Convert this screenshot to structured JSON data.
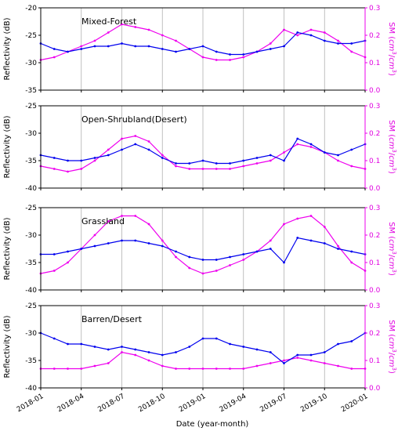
{
  "chart_data": {
    "type": "line",
    "xlabel": "Date (year-month)",
    "x_ticks": [
      "2018-01",
      "2018-04",
      "2018-07",
      "2018-10",
      "2019-01",
      "2019-04",
      "2019-07",
      "2019-10",
      "2020-01"
    ],
    "xlim": [
      "2018-01",
      "2020-01"
    ],
    "colors": {
      "reflectivity": "#0000ee",
      "sm": "#ee00ee"
    },
    "panels": [
      {
        "title": "Mixed-Forest",
        "ylabel": "Reflectivity (dB)",
        "ylim": [
          -35,
          -20
        ],
        "yticks": [
          "-35",
          "-30",
          "-25",
          "-20"
        ],
        "y2label": "SM (cm3/cm3)",
        "y2lim": [
          0,
          0.3
        ],
        "y2ticks": [
          "0.0",
          "0.1",
          "0.2",
          "0.3"
        ],
        "reflectivity": {
          "x": [
            "2018-01",
            "2018-02",
            "2018-03",
            "2018-04",
            "2018-05",
            "2018-06",
            "2018-07",
            "2018-08",
            "2018-09",
            "2018-10",
            "2018-11",
            "2018-12",
            "2019-01",
            "2019-02",
            "2019-03",
            "2019-04",
            "2019-05",
            "2019-06",
            "2019-07",
            "2019-08",
            "2019-09",
            "2019-10",
            "2019-11",
            "2019-12",
            "2020-01"
          ],
          "y": [
            -26.5,
            -27.5,
            -28,
            -27.5,
            -27,
            -27,
            -26.5,
            -27,
            -27,
            -27.5,
            -28,
            -27.5,
            -27,
            -28,
            -28.5,
            -28.5,
            -28,
            -27.5,
            -27,
            -24.5,
            -25,
            -26,
            -26.5,
            -26.5,
            -26
          ]
        },
        "sm": {
          "x": [
            "2018-01",
            "2018-02",
            "2018-03",
            "2018-04",
            "2018-05",
            "2018-06",
            "2018-07",
            "2018-08",
            "2018-09",
            "2018-10",
            "2018-11",
            "2018-12",
            "2019-01",
            "2019-02",
            "2019-03",
            "2019-04",
            "2019-05",
            "2019-06",
            "2019-07",
            "2019-08",
            "2019-09",
            "2019-10",
            "2019-11",
            "2019-12",
            "2020-01"
          ],
          "y": [
            0.11,
            0.12,
            0.14,
            0.16,
            0.18,
            0.21,
            0.24,
            0.23,
            0.22,
            0.2,
            0.18,
            0.15,
            0.12,
            0.11,
            0.11,
            0.12,
            0.14,
            0.17,
            0.22,
            0.2,
            0.22,
            0.21,
            0.18,
            0.14,
            0.12
          ]
        }
      },
      {
        "title": "Open-Shrubland(Desert)",
        "ylabel": "Reflectivity (dB)",
        "ylim": [
          -40,
          -25
        ],
        "yticks": [
          "-40",
          "-35",
          "-30",
          "-25"
        ],
        "y2label": "SM (cm3/cm3)",
        "y2lim": [
          0,
          0.3
        ],
        "y2ticks": [
          "0.0",
          "0.1",
          "0.2",
          "0.3"
        ],
        "reflectivity": {
          "x": [
            "2018-01",
            "2018-02",
            "2018-03",
            "2018-04",
            "2018-05",
            "2018-06",
            "2018-07",
            "2018-08",
            "2018-09",
            "2018-10",
            "2018-11",
            "2018-12",
            "2019-01",
            "2019-02",
            "2019-03",
            "2019-04",
            "2019-05",
            "2019-06",
            "2019-07",
            "2019-08",
            "2019-09",
            "2019-10",
            "2019-11",
            "2019-12",
            "2020-01"
          ],
          "y": [
            -34,
            -34.5,
            -35,
            -35,
            -34.5,
            -34,
            -33,
            -32,
            -33,
            -34.5,
            -35.5,
            -35.5,
            -35,
            -35.5,
            -35.5,
            -35,
            -34.5,
            -34,
            -35,
            -31,
            -32,
            -33.5,
            -34,
            -33,
            -32
          ]
        },
        "sm": {
          "x": [
            "2018-01",
            "2018-02",
            "2018-03",
            "2018-04",
            "2018-05",
            "2018-06",
            "2018-07",
            "2018-08",
            "2018-09",
            "2018-10",
            "2018-11",
            "2018-12",
            "2019-01",
            "2019-02",
            "2019-03",
            "2019-04",
            "2019-05",
            "2019-06",
            "2019-07",
            "2019-08",
            "2019-09",
            "2019-10",
            "2019-11",
            "2019-12",
            "2020-01"
          ],
          "y": [
            0.08,
            0.07,
            0.06,
            0.07,
            0.1,
            0.14,
            0.18,
            0.19,
            0.17,
            0.12,
            0.08,
            0.07,
            0.07,
            0.07,
            0.07,
            0.08,
            0.09,
            0.1,
            0.13,
            0.16,
            0.15,
            0.13,
            0.1,
            0.08,
            0.07
          ]
        }
      },
      {
        "title": "Grassland",
        "ylabel": "Reflectivity (dB)",
        "ylim": [
          -40,
          -25
        ],
        "yticks": [
          "-40",
          "-35",
          "-30",
          "-25"
        ],
        "y2label": "SM (cm3/cm3)",
        "y2lim": [
          0,
          0.3
        ],
        "y2ticks": [
          "0.0",
          "0.1",
          "0.2",
          "0.3"
        ],
        "reflectivity": {
          "x": [
            "2018-01",
            "2018-02",
            "2018-03",
            "2018-04",
            "2018-05",
            "2018-06",
            "2018-07",
            "2018-08",
            "2018-09",
            "2018-10",
            "2018-11",
            "2018-12",
            "2019-01",
            "2019-02",
            "2019-03",
            "2019-04",
            "2019-05",
            "2019-06",
            "2019-07",
            "2019-08",
            "2019-09",
            "2019-10",
            "2019-11",
            "2019-12",
            "2020-01"
          ],
          "y": [
            -33.5,
            -33.5,
            -33,
            -32.5,
            -32,
            -31.5,
            -31,
            -31,
            -31.5,
            -32,
            -33,
            -34,
            -34.5,
            -34.5,
            -34,
            -33.5,
            -33,
            -32.5,
            -35,
            -30.5,
            -31,
            -31.5,
            -32.5,
            -33,
            -33.5
          ]
        },
        "sm": {
          "x": [
            "2018-01",
            "2018-02",
            "2018-03",
            "2018-04",
            "2018-05",
            "2018-06",
            "2018-07",
            "2018-08",
            "2018-09",
            "2018-10",
            "2018-11",
            "2018-12",
            "2019-01",
            "2019-02",
            "2019-03",
            "2019-04",
            "2019-05",
            "2019-06",
            "2019-07",
            "2019-08",
            "2019-09",
            "2019-10",
            "2019-11",
            "2019-12",
            "2020-01"
          ],
          "y": [
            0.06,
            0.07,
            0.1,
            0.15,
            0.2,
            0.25,
            0.27,
            0.27,
            0.24,
            0.18,
            0.12,
            0.08,
            0.06,
            0.07,
            0.09,
            0.11,
            0.14,
            0.18,
            0.24,
            0.26,
            0.27,
            0.23,
            0.16,
            0.1,
            0.07
          ]
        }
      },
      {
        "title": "Barren/Desert",
        "ylabel": "Reflectivity (dB)",
        "ylim": [
          -40,
          -25
        ],
        "yticks": [
          "-40",
          "-35",
          "-30",
          "-25"
        ],
        "y2label": "SM (cm3/cm3)",
        "y2lim": [
          0,
          0.3
        ],
        "y2ticks": [
          "0.0",
          "0.1",
          "0.2",
          "0.3"
        ],
        "reflectivity": {
          "x": [
            "2018-01",
            "2018-02",
            "2018-03",
            "2018-04",
            "2018-05",
            "2018-06",
            "2018-07",
            "2018-08",
            "2018-09",
            "2018-10",
            "2018-11",
            "2018-12",
            "2019-01",
            "2019-02",
            "2019-03",
            "2019-04",
            "2019-05",
            "2019-06",
            "2019-07",
            "2019-08",
            "2019-09",
            "2019-10",
            "2019-11",
            "2019-12",
            "2020-01"
          ],
          "y": [
            -30,
            -31,
            -32,
            -32,
            -32.5,
            -33,
            -32.5,
            -33,
            -33.5,
            -34,
            -33.5,
            -32.5,
            -31,
            -31,
            -32,
            -32.5,
            -33,
            -33.5,
            -35.5,
            -34,
            -34,
            -33.5,
            -32,
            -31.5,
            -30
          ]
        },
        "sm": {
          "x": [
            "2018-01",
            "2018-02",
            "2018-03",
            "2018-04",
            "2018-05",
            "2018-06",
            "2018-07",
            "2018-08",
            "2018-09",
            "2018-10",
            "2018-11",
            "2018-12",
            "2019-01",
            "2019-02",
            "2019-03",
            "2019-04",
            "2019-05",
            "2019-06",
            "2019-07",
            "2019-08",
            "2019-09",
            "2019-10",
            "2019-11",
            "2019-12",
            "2020-01"
          ],
          "y": [
            0.07,
            0.07,
            0.07,
            0.07,
            0.08,
            0.09,
            0.13,
            0.12,
            0.1,
            0.08,
            0.07,
            0.07,
            0.07,
            0.07,
            0.07,
            0.07,
            0.08,
            0.09,
            0.1,
            0.11,
            0.1,
            0.09,
            0.08,
            0.07,
            0.07
          ]
        }
      }
    ]
  }
}
